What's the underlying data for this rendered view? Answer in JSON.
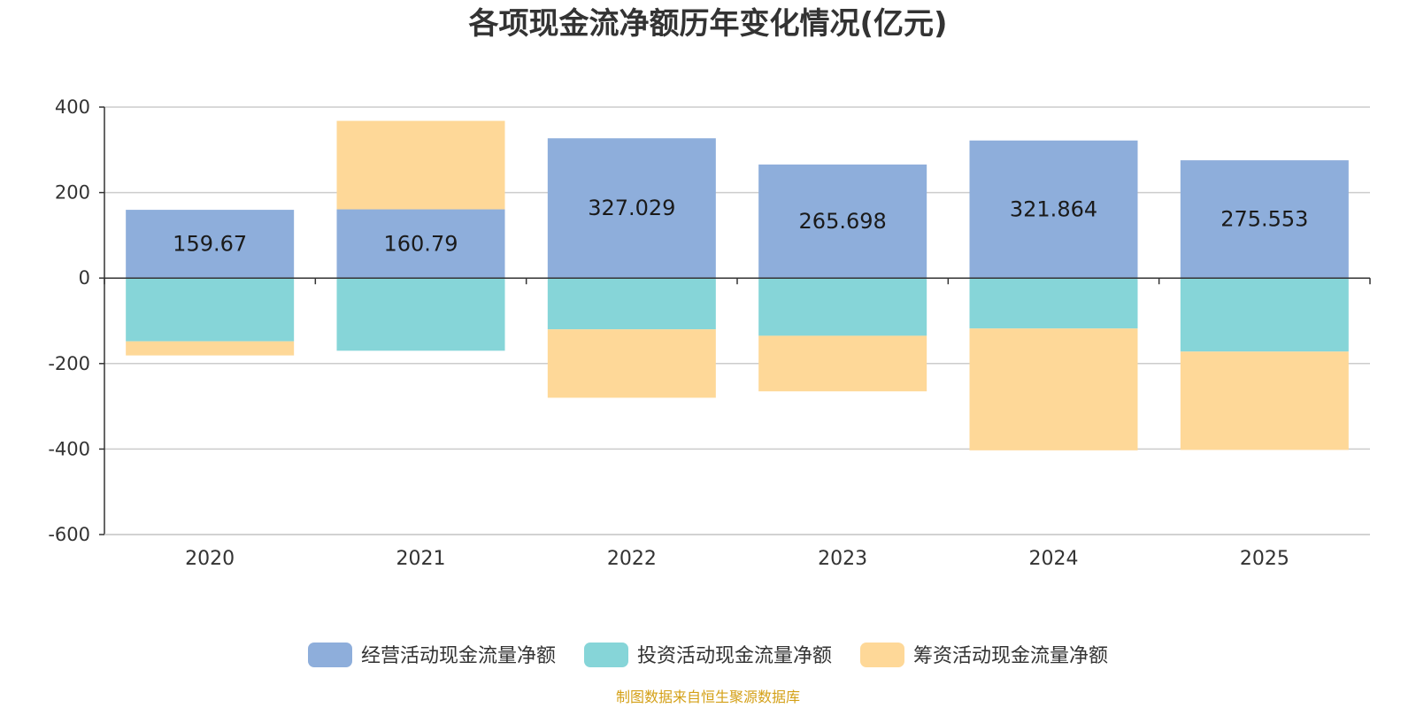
{
  "chart_data": {
    "type": "bar",
    "stacked": true,
    "title": "各项现金流净额历年变化情况(亿元)",
    "categories": [
      "2020",
      "2021",
      "2022",
      "2023",
      "2024",
      "2025"
    ],
    "ylim": [
      -600,
      400
    ],
    "yticks": [
      400,
      200,
      0,
      -200,
      -400,
      -600
    ],
    "grid": true,
    "legend_position": "bottom",
    "series": [
      {
        "name": "经营活动现金流量净额",
        "color": "#8eaedb",
        "values": [
          159.67,
          160.79,
          327.029,
          265.698,
          321.864,
          275.553
        ],
        "labels": [
          "159.67",
          "160.79",
          "327.029",
          "265.698",
          "321.864",
          "275.553"
        ]
      },
      {
        "name": "投资活动现金流量净额",
        "color": "#86d5d8",
        "values": [
          -148,
          -170,
          -120,
          -135,
          -118,
          -172
        ]
      },
      {
        "name": "筹资活动现金流量净额",
        "color": "#fed898",
        "values": [
          -33,
          207,
          -160,
          -130,
          -285,
          -230
        ]
      }
    ]
  },
  "source_text": "制图数据来自恒生聚源数据库",
  "colors": {
    "axis": "#333333",
    "grid": "#cccccc",
    "source": "#d4a017"
  }
}
